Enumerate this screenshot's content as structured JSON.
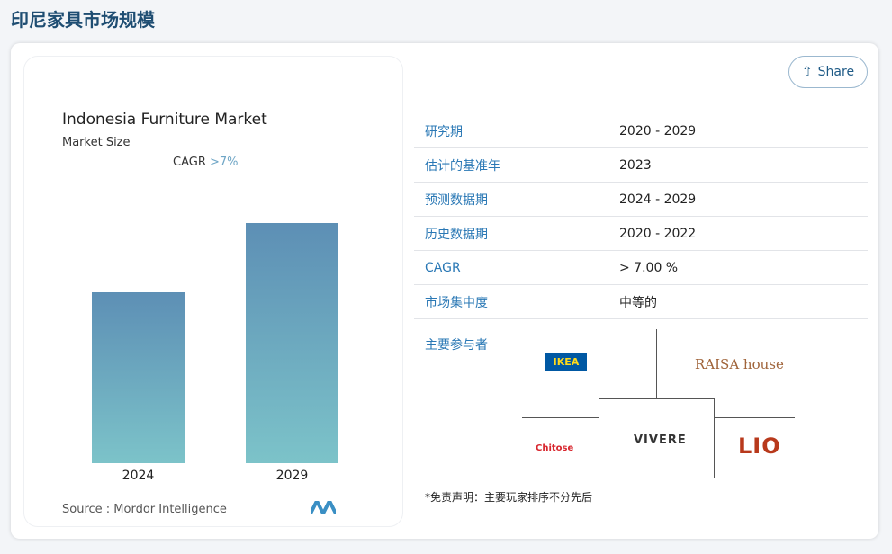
{
  "page_title": "印尼家具市场规模",
  "chart_data": {
    "type": "bar",
    "title": "Indonesia Furniture Market",
    "subtitle": "Market Size",
    "annotation": "CAGR",
    "annotation_value": ">7%",
    "categories": [
      "2024",
      "2029"
    ],
    "values": [
      0.71,
      1.0
    ],
    "value_note": "relative, unlabeled",
    "source": "Source : Mordor Intelligence",
    "colors": [
      "#5d8fb5",
      "#7cc3c9"
    ]
  },
  "share_label": "Share",
  "table": [
    [
      "研究期",
      "2020 - 2029"
    ],
    [
      "估计的基准年",
      "2023"
    ],
    [
      "预测数据期",
      "2024 - 2029"
    ],
    [
      "历史数据期",
      "2020 - 2022"
    ],
    [
      "CAGR",
      "> 7.00 %"
    ],
    [
      "市场集中度",
      "中等的"
    ]
  ],
  "key_players_label": "主要参与者",
  "players": [
    "IKEA",
    "RAISA house",
    "VIVERE",
    "Chitose",
    "LIO"
  ],
  "disclaimer": "*免责声明：主要玩家排序不分先后"
}
